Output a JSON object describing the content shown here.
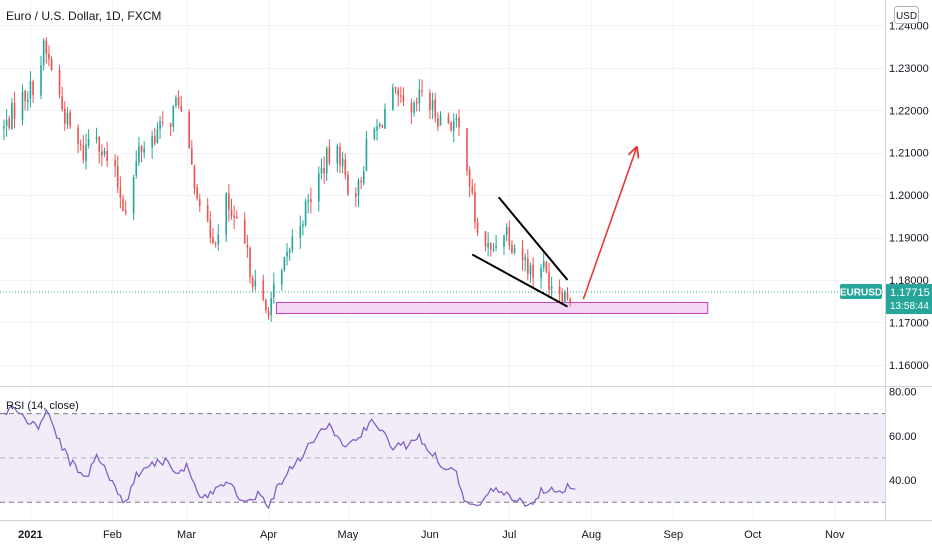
{
  "instrument": {
    "title": "Euro / U.S. Dollar, 1D, FXCM",
    "currency": "USD",
    "symbol": "EURUSD",
    "last_price": "1.17715",
    "countdown": "13:58:44"
  },
  "colors": {
    "up": "#26a69a",
    "down": "#ef5350",
    "rsi_line": "#7e57c2",
    "rsi_band": "#ede7f6",
    "zone_fill": "#f3d6f3",
    "zone_stroke": "#c040c0",
    "arrow": "#e53935",
    "wedge": "#000000",
    "grid": "#f0f3fa",
    "axis_text": "#131722"
  },
  "chart_data": [
    {
      "type": "candlestick",
      "title": "Euro / U.S. Dollar, 1D, FXCM",
      "ylim": [
        1.155,
        1.246
      ],
      "y_ticks": [
        "1.24000",
        "1.23000",
        "1.22000",
        "1.21000",
        "1.20000",
        "1.19000",
        "1.18000",
        "1.17000",
        "1.16000"
      ],
      "y_tick_values": [
        1.24,
        1.23,
        1.22,
        1.21,
        1.2,
        1.19,
        1.18,
        1.17,
        1.16
      ],
      "x_ticks": [
        "2021",
        "Feb",
        "Mar",
        "Apr",
        "May",
        "Jun",
        "Jul",
        "Aug",
        "Sep",
        "Oct",
        "Nov"
      ],
      "x_tick_days": [
        0,
        31,
        59,
        90,
        120,
        151,
        181,
        212,
        243,
        273,
        304
      ],
      "xlim_days": [
        -11.5,
        323
      ],
      "last_day": 206,
      "path": [
        [
          -10,
          1.2158
        ],
        [
          -4,
          1.2225
        ],
        [
          0,
          1.225
        ],
        [
          3,
          1.228
        ],
        [
          5,
          1.2345
        ],
        [
          9,
          1.2285
        ],
        [
          12,
          1.2205
        ],
        [
          15,
          1.2155
        ],
        [
          18,
          1.2115
        ],
        [
          20,
          1.2095
        ],
        [
          24,
          1.2175
        ],
        [
          27,
          1.2105
        ],
        [
          32,
          1.2045
        ],
        [
          35,
          1.198
        ],
        [
          37,
          1.1975
        ],
        [
          41,
          1.2105
        ],
        [
          45,
          1.213
        ],
        [
          48,
          1.215
        ],
        [
          52,
          1.2165
        ],
        [
          56,
          1.223
        ],
        [
          59,
          1.211
        ],
        [
          64,
          1.199
        ],
        [
          67,
          1.1915
        ],
        [
          71,
          1.19
        ],
        [
          74,
          1.1985
        ],
        [
          77,
          1.1925
        ],
        [
          79,
          1.192
        ],
        [
          83,
          1.183
        ],
        [
          86,
          1.176
        ],
        [
          89,
          1.1725
        ],
        [
          92,
          1.177
        ],
        [
          95,
          1.181
        ],
        [
          98,
          1.1875
        ],
        [
          100,
          1.191
        ],
        [
          105,
          1.198
        ],
        [
          108,
          1.203
        ],
        [
          112,
          1.2085
        ],
        [
          117,
          1.2095
        ],
        [
          120,
          1.202
        ],
        [
          124,
          1.2015
        ],
        [
          128,
          1.214
        ],
        [
          132,
          1.216
        ],
        [
          136,
          1.224
        ],
        [
          140,
          1.221
        ],
        [
          144,
          1.218
        ],
        [
          148,
          1.2245
        ],
        [
          151,
          1.221
        ],
        [
          155,
          1.218
        ],
        [
          160,
          1.217
        ],
        [
          164,
          1.213
        ],
        [
          167,
          1.1985
        ],
        [
          169,
          1.1905
        ],
        [
          171,
          1.19
        ],
        [
          174,
          1.186
        ],
        [
          178,
          1.1925
        ],
        [
          180,
          1.192
        ],
        [
          182,
          1.189
        ],
        [
          186,
          1.1855
        ],
        [
          190,
          1.1815
        ],
        [
          192,
          1.1855
        ],
        [
          196,
          1.18
        ],
        [
          200,
          1.178
        ],
        [
          203,
          1.1765
        ],
        [
          206,
          1.1772
        ]
      ],
      "annotations": {
        "support_zone": {
          "day_start": 93,
          "day_end": 256,
          "price_low": 1.1721,
          "price_high": 1.1747
        },
        "wedge_upper": [
          [
            177,
            1.1995
          ],
          [
            203,
            1.18
          ]
        ],
        "wedge_lower": [
          [
            167,
            1.186
          ],
          [
            203,
            1.1737
          ]
        ],
        "forecast_arrow": [
          [
            209,
            1.1755
          ],
          [
            229,
            1.211
          ]
        ]
      }
    },
    {
      "type": "line",
      "title": "RSI (14, close)",
      "ylim": [
        22,
        82
      ],
      "y_ticks": [
        "80.00",
        "60.00",
        "40.00"
      ],
      "y_tick_values": [
        80,
        60,
        40
      ],
      "band": [
        30,
        70
      ],
      "midline": 50,
      "series": [
        {
          "name": "RSI (14, close)",
          "points": [
            [
              -10,
              70
            ],
            [
              -6,
              73
            ],
            [
              0,
              65
            ],
            [
              3,
              64
            ],
            [
              6,
              72
            ],
            [
              10,
              60
            ],
            [
              14,
              50
            ],
            [
              18,
              44
            ],
            [
              21,
              41
            ],
            [
              25,
              52
            ],
            [
              28,
              46
            ],
            [
              31,
              38
            ],
            [
              34,
              33
            ],
            [
              36,
              30
            ],
            [
              40,
              42
            ],
            [
              44,
              47
            ],
            [
              48,
              48
            ],
            [
              52,
              49
            ],
            [
              56,
              42
            ],
            [
              59,
              46
            ],
            [
              62,
              37
            ],
            [
              65,
              31
            ],
            [
              68,
              33
            ],
            [
              71,
              38
            ],
            [
              75,
              40
            ],
            [
              79,
              33
            ],
            [
              83,
              30
            ],
            [
              86,
              34
            ],
            [
              90,
              29
            ],
            [
              94,
              38
            ],
            [
              98,
              45
            ],
            [
              103,
              52
            ],
            [
              108,
              60
            ],
            [
              113,
              65
            ],
            [
              117,
              57
            ],
            [
              121,
              56
            ],
            [
              126,
              62
            ],
            [
              130,
              67
            ],
            [
              133,
              61
            ],
            [
              137,
              55
            ],
            [
              142,
              56
            ],
            [
              146,
              60
            ],
            [
              150,
              55
            ],
            [
              155,
              48
            ],
            [
              158,
              44
            ],
            [
              161,
              45
            ],
            [
              163,
              34
            ],
            [
              165,
              30
            ],
            [
              168,
              27
            ],
            [
              172,
              33
            ],
            [
              176,
              36
            ],
            [
              180,
              33
            ],
            [
              184,
              32
            ],
            [
              187,
              28
            ],
            [
              190,
              31
            ],
            [
              194,
              36
            ],
            [
              197,
              37
            ],
            [
              200,
              35
            ],
            [
              203,
              37
            ],
            [
              206,
              36
            ]
          ]
        }
      ]
    }
  ]
}
